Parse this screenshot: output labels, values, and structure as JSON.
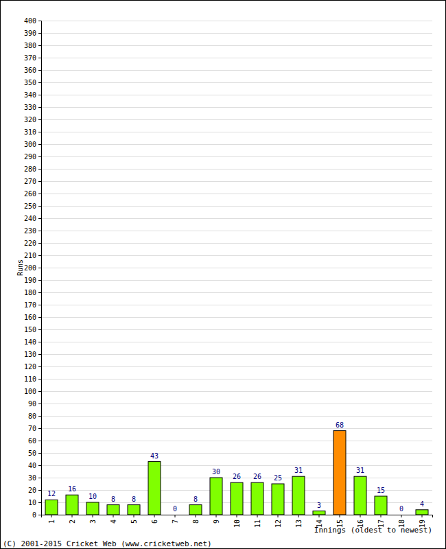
{
  "chart_data": {
    "type": "bar",
    "x_label": "Innings (oldest to newest)",
    "y_label": "Runs",
    "annotations": [
      "(C) 2001-2015 Cricket Web (www.cricketweb.net)"
    ],
    "categories": [
      "1",
      "2",
      "3",
      "4",
      "5",
      "6",
      "7",
      "8",
      "9",
      "10",
      "11",
      "12",
      "13",
      "14",
      "15",
      "16",
      "17",
      "18",
      "19"
    ],
    "values": [
      12,
      16,
      10,
      8,
      8,
      43,
      0,
      8,
      30,
      26,
      26,
      25,
      31,
      3,
      68,
      31,
      15,
      0,
      4
    ],
    "colors": [
      "#80ff00",
      "#80ff00",
      "#80ff00",
      "#80ff00",
      "#80ff00",
      "#80ff00",
      "#80ff00",
      "#80ff00",
      "#80ff00",
      "#80ff00",
      "#80ff00",
      "#80ff00",
      "#80ff00",
      "#80ff00",
      "#ff8c00",
      "#80ff00",
      "#80ff00",
      "#80ff00",
      "#80ff00"
    ],
    "ylim": [
      0,
      400
    ],
    "yticks": [
      0,
      10,
      20,
      30,
      40,
      50,
      60,
      70,
      80,
      90,
      100,
      110,
      120,
      130,
      140,
      150,
      160,
      170,
      180,
      190,
      200,
      210,
      220,
      230,
      240,
      250,
      260,
      270,
      280,
      290,
      300,
      310,
      320,
      330,
      340,
      350,
      360,
      370,
      380,
      390,
      400
    ],
    "grid": true,
    "data_labels": true
  }
}
